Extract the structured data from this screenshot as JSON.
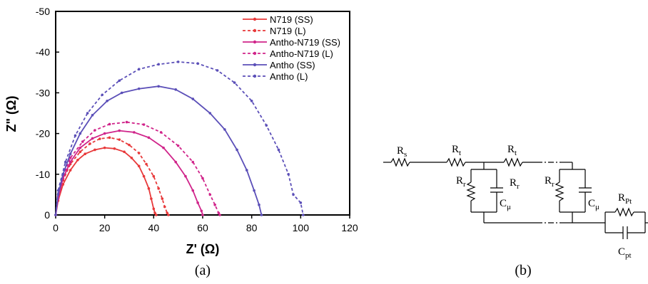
{
  "chart_data": {
    "type": "line",
    "panel_label": "(a)",
    "xlabel": "Z' (Ω)",
    "ylabel": "Z\" (Ω)",
    "xlim": [
      0,
      120
    ],
    "ylim": [
      0,
      -50
    ],
    "x_ticks": [
      "0",
      "20",
      "40",
      "60",
      "80",
      "100",
      "120"
    ],
    "y_ticks": [
      "0",
      "-10",
      "-20",
      "-30",
      "-40",
      "-50"
    ],
    "x_tick_values": [
      0,
      20,
      40,
      60,
      80,
      100,
      120
    ],
    "y_tick_values": [
      0,
      -10,
      -20,
      -30,
      -40,
      -50
    ],
    "legend_position": "top-right",
    "grid": false,
    "series": [
      {
        "name": "N719 (SS)",
        "color": "#e8393a",
        "dash": "solid",
        "points": [
          [
            0,
            0
          ],
          [
            1,
            -3.5
          ],
          [
            3,
            -7.5
          ],
          [
            6,
            -11
          ],
          [
            9,
            -13.5
          ],
          [
            12,
            -15
          ],
          [
            16,
            -16
          ],
          [
            20,
            -16.5
          ],
          [
            24,
            -16.3
          ],
          [
            28,
            -15.5
          ],
          [
            31,
            -14
          ],
          [
            34,
            -12
          ],
          [
            36,
            -9.5
          ],
          [
            38,
            -6.5
          ],
          [
            39,
            -4
          ],
          [
            40,
            -1.5
          ],
          [
            40.5,
            -0.5
          ],
          [
            41,
            0
          ]
        ]
      },
      {
        "name": "N719 (L)",
        "color": "#e8393a",
        "dash": "dashed",
        "points": [
          [
            0,
            0
          ],
          [
            1,
            -4
          ],
          [
            3,
            -8.5
          ],
          [
            6,
            -12.5
          ],
          [
            10,
            -15.5
          ],
          [
            14,
            -17.5
          ],
          [
            18,
            -18.7
          ],
          [
            22,
            -19
          ],
          [
            26,
            -18.5
          ],
          [
            30,
            -17.2
          ],
          [
            34,
            -15.2
          ],
          [
            37,
            -12.5
          ],
          [
            40,
            -9.5
          ],
          [
            42,
            -6.5
          ],
          [
            43.5,
            -4
          ],
          [
            44.5,
            -2
          ],
          [
            45.5,
            -0.5
          ],
          [
            46,
            0
          ]
        ]
      },
      {
        "name": "Antho-N719 (SS)",
        "color": "#d0248a",
        "dash": "solid",
        "points": [
          [
            0,
            0
          ],
          [
            1,
            -4
          ],
          [
            3,
            -9
          ],
          [
            6,
            -13
          ],
          [
            10,
            -16.5
          ],
          [
            15,
            -18.8
          ],
          [
            20,
            -20
          ],
          [
            26,
            -20.7
          ],
          [
            32,
            -20.3
          ],
          [
            38,
            -19
          ],
          [
            44,
            -16.5
          ],
          [
            49,
            -13
          ],
          [
            53,
            -9.5
          ],
          [
            56,
            -6
          ],
          [
            58,
            -3
          ],
          [
            59.5,
            -1
          ],
          [
            60,
            0
          ]
        ]
      },
      {
        "name": "Antho-N719 (L)",
        "color": "#d0248a",
        "dash": "dashed",
        "points": [
          [
            0,
            0
          ],
          [
            1,
            -4.5
          ],
          [
            3,
            -9.5
          ],
          [
            6,
            -14
          ],
          [
            11,
            -18
          ],
          [
            16,
            -20.8
          ],
          [
            22,
            -22.3
          ],
          [
            29,
            -22.8
          ],
          [
            36,
            -22.2
          ],
          [
            43,
            -20.3
          ],
          [
            50,
            -17
          ],
          [
            56,
            -13
          ],
          [
            60,
            -9
          ],
          [
            63,
            -5
          ],
          [
            65,
            -2.5
          ],
          [
            66.5,
            -0.5
          ],
          [
            67,
            0
          ]
        ]
      },
      {
        "name": "Antho (SS)",
        "color": "#5b4fb8",
        "dash": "solid",
        "points": [
          [
            0,
            0
          ],
          [
            1,
            -5
          ],
          [
            3,
            -10
          ],
          [
            6,
            -15
          ],
          [
            10,
            -20
          ],
          [
            15,
            -24.5
          ],
          [
            21,
            -28
          ],
          [
            27,
            -30
          ],
          [
            34,
            -31
          ],
          [
            42,
            -31.6
          ],
          [
            49,
            -30.8
          ],
          [
            56,
            -28.5
          ],
          [
            63,
            -25
          ],
          [
            69,
            -21
          ],
          [
            74,
            -16
          ],
          [
            78,
            -11
          ],
          [
            81,
            -6
          ],
          [
            83,
            -2.5
          ],
          [
            84,
            0
          ]
        ]
      },
      {
        "name": "Antho (L)",
        "color": "#5b4fb8",
        "dash": "dashed",
        "points": [
          [
            0,
            0
          ],
          [
            1,
            -6
          ],
          [
            4,
            -13
          ],
          [
            8,
            -19.5
          ],
          [
            13,
            -25
          ],
          [
            19,
            -29.5
          ],
          [
            26,
            -33
          ],
          [
            34,
            -35.8
          ],
          [
            42,
            -37
          ],
          [
            50,
            -37.6
          ],
          [
            58,
            -37.2
          ],
          [
            66,
            -35.5
          ],
          [
            73,
            -32.5
          ],
          [
            80,
            -28
          ],
          [
            86,
            -22
          ],
          [
            91,
            -16
          ],
          [
            95,
            -10
          ],
          [
            97,
            -5
          ],
          [
            100,
            -3
          ],
          [
            101,
            0
          ]
        ]
      }
    ]
  },
  "circuit": {
    "panel_label": "(b)",
    "labels": {
      "Rs": {
        "main": "R",
        "sub": "s"
      },
      "Rt1": {
        "main": "R",
        "sub": "t"
      },
      "Rt2": {
        "main": "R",
        "sub": "t"
      },
      "Rr1": {
        "main": "R",
        "sub": "r"
      },
      "Rr1b": {
        "main": "R",
        "sub": "r"
      },
      "Cmu1": {
        "main": "C",
        "sub": "μ"
      },
      "Rr2": {
        "main": "R",
        "sub": "r"
      },
      "Cmu2": {
        "main": "C",
        "sub": "μ"
      },
      "RPt": {
        "main": "R",
        "sub": "Pt"
      },
      "Cpt": {
        "main": "C",
        "sub": "pt"
      }
    }
  }
}
